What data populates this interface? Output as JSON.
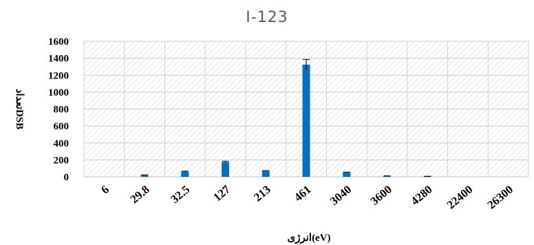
{
  "chart_data": {
    "type": "bar",
    "title": "I-123",
    "xlabel": "انرژی(eV)",
    "ylabel": "تعدادDSB",
    "categories": [
      "6",
      "29.8",
      "32.5",
      "127",
      "213",
      "461",
      "3040",
      "3600",
      "4280",
      "22400",
      "26300"
    ],
    "series": [
      {
        "values": [
          0,
          20,
          62,
          175,
          68,
          1325,
          52,
          10,
          4,
          0,
          0
        ],
        "errors": [
          0,
          3,
          5,
          10,
          5,
          60,
          4,
          2,
          1,
          0,
          0
        ]
      }
    ],
    "ylim": [
      0,
      1600
    ],
    "yticks": [
      0,
      200,
      400,
      600,
      800,
      1000,
      1200,
      1400,
      1600
    ],
    "grid": true,
    "bar_color": "#0070c0",
    "background_pattern": "diagonal-hatch"
  }
}
